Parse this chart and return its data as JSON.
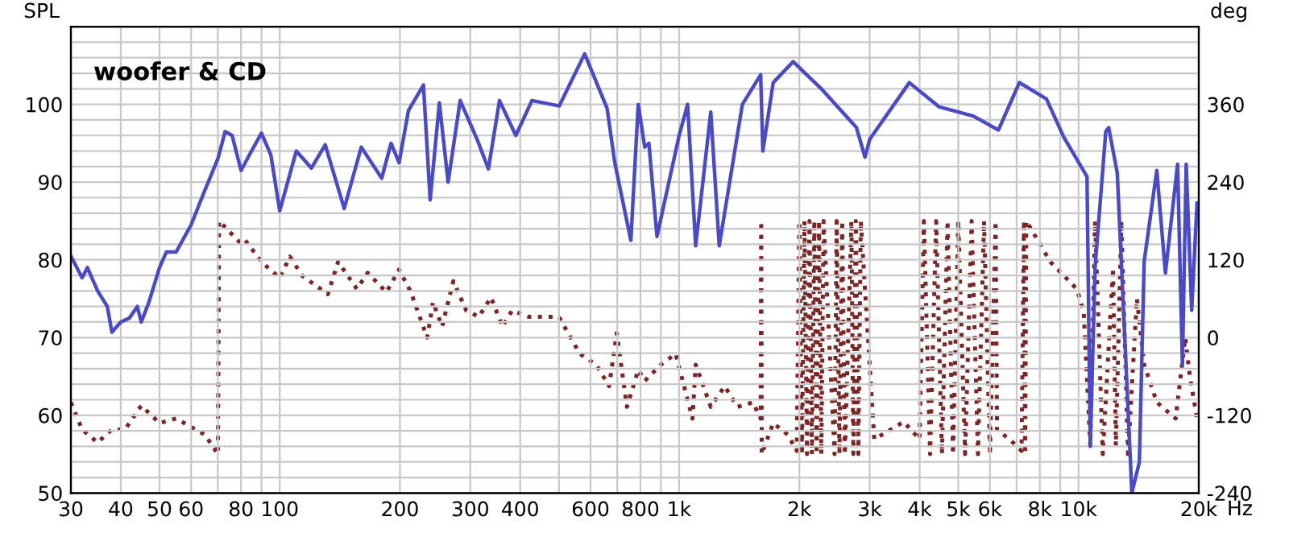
{
  "chart_data": {
    "type": "line",
    "ylabel": "SPL",
    "y2label": "deg",
    "annotations": [
      "woofer & CD"
    ],
    "log": "x",
    "grid": true,
    "marker": "none",
    "xlim": [
      30,
      20000
    ],
    "ylim": [
      50,
      110
    ],
    "y2lim": [
      -240,
      480
    ],
    "xticks": [
      30,
      40,
      50,
      60,
      {
        "value": 70,
        "label": null
      },
      80,
      {
        "value": 90,
        "label": null
      },
      100,
      200,
      300,
      400,
      {
        "value": 500,
        "label": null
      },
      600,
      {
        "value": 700,
        "label": null
      },
      800,
      {
        "value": 900,
        "label": null
      },
      {
        "value": 1000,
        "label": "1k"
      },
      {
        "value": 2000,
        "label": "2k"
      },
      {
        "value": 3000,
        "label": "3k"
      },
      {
        "value": 4000,
        "label": "4k"
      },
      {
        "value": 5000,
        "label": "5k"
      },
      {
        "value": 6000,
        "label": "6k"
      },
      {
        "value": 7000,
        "label": null
      },
      {
        "value": 8000,
        "label": "8k"
      },
      {
        "value": 9000,
        "label": null
      },
      {
        "value": 10000,
        "label": "10k"
      },
      {
        "value": 20000,
        "label": "20k"
      }
    ],
    "xlabel": "Hz",
    "yticks": [
      50,
      {
        "value": 52,
        "label": null
      },
      {
        "value": 54,
        "label": null
      },
      {
        "value": 56,
        "label": null
      },
      {
        "value": 58,
        "label": null
      },
      60,
      {
        "value": 62,
        "label": null
      },
      {
        "value": 64,
        "label": null
      },
      {
        "value": 66,
        "label": null
      },
      {
        "value": 68,
        "label": null
      },
      70,
      {
        "value": 72,
        "label": null
      },
      {
        "value": 74,
        "label": null
      },
      {
        "value": 76,
        "label": null
      },
      {
        "value": 78,
        "label": null
      },
      80,
      {
        "value": 82,
        "label": null
      },
      {
        "value": 84,
        "label": null
      },
      {
        "value": 86,
        "label": null
      },
      {
        "value": 88,
        "label": null
      },
      90,
      {
        "value": 92,
        "label": null
      },
      {
        "value": 94,
        "label": null
      },
      {
        "value": 96,
        "label": null
      },
      {
        "value": 98,
        "label": null
      },
      100,
      {
        "value": 102,
        "label": null
      },
      {
        "value": 104,
        "label": null
      },
      {
        "value": 106,
        "label": null
      },
      {
        "value": 108,
        "label": null
      }
    ],
    "y2ticks": [
      -240,
      -120,
      0,
      120,
      240,
      360
    ],
    "series": [
      {
        "color": "#4a4ac4",
        "line_style": "solid",
        "x": [
          30,
          32,
          33,
          35,
          37,
          38,
          40,
          42,
          44,
          45,
          47,
          50,
          52,
          55,
          60,
          65,
          70,
          73,
          76,
          80,
          85,
          90,
          95,
          100,
          110,
          120,
          130,
          145,
          160,
          180,
          190,
          199,
          210,
          229,
          238,
          251,
          264,
          283,
          312,
          333,
          355,
          390,
          428,
          501,
          580,
          660,
          690,
          757,
          790,
          820,
          840,
          880,
          1000,
          1050,
          1100,
          1200,
          1260,
          1440,
          1600,
          1620,
          1720,
          1930,
          2270,
          2780,
          2920,
          3000,
          3770,
          4470,
          5450,
          6300,
          7110,
          8310,
          9180,
          10500,
          10700,
          11000,
          11700,
          11900,
          12500,
          13600,
          14200,
          14600,
          15700,
          16500,
          17700,
          18200,
          18600,
          19200,
          19800
        ],
        "values": [
          80.5,
          77.7,
          79,
          76,
          74,
          70.7,
          72,
          72.5,
          74,
          72,
          74.5,
          79,
          81,
          81,
          84.5,
          89,
          93,
          96.5,
          96,
          91.5,
          94,
          96.3,
          93.5,
          86.3,
          94,
          91.8,
          94.8,
          86.6,
          94.5,
          90.5,
          95,
          92.5,
          99.2,
          102.5,
          87.7,
          100.2,
          90,
          100.5,
          95.5,
          91.7,
          100.5,
          96,
          100.5,
          99.8,
          106.5,
          99.5,
          92.5,
          82.5,
          100,
          94.5,
          95,
          83,
          96,
          100,
          81.8,
          99,
          81.8,
          100,
          103.8,
          94,
          102.8,
          105.5,
          102,
          97,
          93.2,
          95.5,
          102.8,
          99.7,
          98.5,
          96.7,
          102.8,
          100.7,
          95.8,
          90.7,
          56,
          79,
          96.5,
          97,
          91.2,
          50,
          54,
          79.8,
          91.5,
          78.3,
          92.3,
          66.5,
          92.3,
          73.5,
          87.3
        ]
      },
      {
        "color": "#7a2626",
        "line_style": "dotted",
        "axis": "y2",
        "x": [
          30,
          32,
          35,
          38,
          41,
          45,
          50,
          55,
          65,
          70,
          70.5,
          80,
          82,
          90,
          100,
          106,
          114,
          132,
          140,
          156,
          166,
          185,
          199,
          213,
          234,
          242,
          255,
          272,
          293,
          315,
          338,
          361,
          382,
          420,
          500,
          564,
          620,
          668,
          698,
          740,
          790,
          820,
          900,
          980,
          1080,
          1100,
          1200,
          1300,
          1400,
          1530,
          1600,
          1605,
          1610,
          1720,
          1870,
          1970,
          2000,
          2030,
          2060,
          2090,
          2120,
          2150,
          2180,
          2210,
          2240,
          2270,
          2300,
          2450,
          2480,
          2520,
          2560,
          2600,
          2700,
          2730,
          2770,
          2810,
          2850,
          3080,
          3650,
          4000,
          4100,
          4250,
          4400,
          4550,
          4700,
          4850,
          5000,
          5200,
          5400,
          5600,
          5800,
          6000,
          6200,
          6250,
          6800,
          7200,
          7300,
          7350,
          7400,
          8500,
          9900,
          10300,
          10700,
          11000,
          11500,
          12200,
          12400,
          12800,
          13300,
          14000,
          14600,
          15700,
          17500,
          18500,
          19000,
          19800
        ],
        "values": [
          -100,
          -142,
          -162,
          -142,
          -142,
          -105,
          -132,
          -125,
          -150,
          -180,
          180,
          145,
          150,
          117,
          92,
          125,
          95,
          67,
          117,
          75,
          100,
          70,
          105,
          70,
          0,
          55,
          17,
          87,
          42,
          32,
          62,
          17,
          42,
          32,
          32,
          -25,
          -42,
          -75,
          7,
          -107,
          -50,
          -67,
          -42,
          -25,
          -125,
          -42,
          -107,
          -75,
          -107,
          -100,
          -125,
          180,
          -180,
          -132,
          -150,
          -175,
          180,
          -180,
          180,
          -180,
          180,
          -180,
          180,
          -180,
          180,
          -180,
          180,
          -180,
          180,
          -180,
          180,
          -180,
          180,
          -180,
          180,
          -180,
          180,
          -157,
          -130,
          -157,
          180,
          -180,
          180,
          -180,
          180,
          -180,
          180,
          -180,
          180,
          -180,
          180,
          -180,
          180,
          -142,
          -160,
          -175,
          180,
          -180,
          180,
          117,
          75,
          40,
          -167,
          180,
          -180,
          107,
          -167,
          180,
          -180,
          60,
          -42,
          -100,
          -125,
          0,
          -60,
          -125
        ]
      }
    ]
  }
}
